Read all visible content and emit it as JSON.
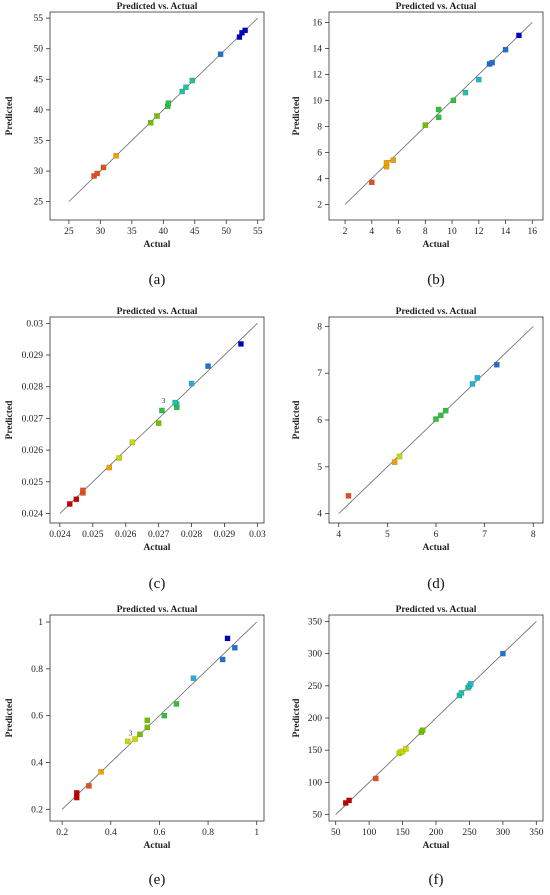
{
  "chart_data": [
    {
      "type": "scatter",
      "panel_label": "(a)",
      "title": "Predicted vs. Actual",
      "xlabel": "Actual",
      "ylabel": "Predicted",
      "xlim": [
        22,
        56
      ],
      "ylim": [
        22,
        56
      ],
      "xticks": [
        "25",
        "30",
        "35",
        "40",
        "45",
        "50",
        "55"
      ],
      "yticks": [
        "25",
        "30",
        "35",
        "40",
        "45",
        "50",
        "55"
      ],
      "tick_values": [
        25,
        30,
        35,
        40,
        45,
        50,
        55
      ],
      "diag": [
        25,
        55
      ],
      "points": [
        [
          29,
          29.2
        ],
        [
          29.5,
          29.6
        ],
        [
          30.5,
          30.6
        ],
        [
          32.5,
          32.5
        ],
        [
          38,
          37.9
        ],
        [
          39,
          39
        ],
        [
          40.7,
          40.6
        ],
        [
          40.8,
          41.1
        ],
        [
          43,
          43
        ],
        [
          43.6,
          43.7
        ],
        [
          44.6,
          44.8
        ],
        [
          49.1,
          49.1
        ],
        [
          52.1,
          51.9
        ],
        [
          52.5,
          52.6
        ],
        [
          53,
          53
        ]
      ],
      "annotations": []
    },
    {
      "type": "scatter",
      "panel_label": "(b)",
      "title": "Predicted vs. Actual",
      "xlabel": "Actual",
      "ylabel": "Predicted",
      "xlim": [
        0.8,
        16.8
      ],
      "ylim": [
        0.8,
        16.8
      ],
      "xticks": [
        "2",
        "4",
        "6",
        "8",
        "10",
        "12",
        "14",
        "16"
      ],
      "yticks": [
        "2",
        "4",
        "6",
        "8",
        "10",
        "12",
        "14",
        "16"
      ],
      "tick_values": [
        2,
        4,
        6,
        8,
        10,
        12,
        14,
        16
      ],
      "diag": [
        2,
        16
      ],
      "points": [
        [
          4,
          3.7
        ],
        [
          5.1,
          4.9
        ],
        [
          5.1,
          5.2
        ],
        [
          5.6,
          5.4
        ],
        [
          8,
          8.1
        ],
        [
          9,
          8.7
        ],
        [
          9,
          9.3
        ],
        [
          10.1,
          10
        ],
        [
          11,
          10.6
        ],
        [
          12,
          11.6
        ],
        [
          12.8,
          12.8
        ],
        [
          13,
          12.9
        ],
        [
          14,
          13.9
        ],
        [
          15,
          15
        ]
      ],
      "annotations": []
    },
    {
      "type": "scatter",
      "panel_label": "(c)",
      "title": "Predicted vs. Actual",
      "xlabel": "Actual",
      "ylabel": "Predicted",
      "xlim": [
        0.0237,
        0.0302
      ],
      "ylim": [
        0.0237,
        0.0302
      ],
      "xticks": [
        "0.024",
        "0.025",
        "0.026",
        "0.027",
        "0.028",
        "0.029",
        "0.03"
      ],
      "yticks": [
        "0.024",
        "0.025",
        "0.026",
        "0.027",
        "0.028",
        "0.029",
        "0.03"
      ],
      "tick_values": [
        0.024,
        0.025,
        0.026,
        0.027,
        0.028,
        0.029,
        0.03
      ],
      "diag": [
        0.024,
        0.03
      ],
      "points": [
        [
          0.0243,
          0.0243
        ],
        [
          0.0245,
          0.02445
        ],
        [
          0.0247,
          0.02465
        ],
        [
          0.0247,
          0.02473
        ],
        [
          0.0255,
          0.02545
        ],
        [
          0.0258,
          0.02575
        ],
        [
          0.0262,
          0.02625
        ],
        [
          0.027,
          0.02685
        ],
        [
          0.0271,
          0.02725
        ],
        [
          0.02755,
          0.02735
        ],
        [
          0.02755,
          0.02745
        ],
        [
          0.0275,
          0.0275
        ],
        [
          0.028,
          0.0281
        ],
        [
          0.0285,
          0.02865
        ],
        [
          0.0295,
          0.02935
        ]
      ],
      "annotations": [
        {
          "text": "3",
          "x": 0.02725,
          "y": 0.02748
        }
      ]
    },
    {
      "type": "scatter",
      "panel_label": "(d)",
      "title": "Predicted vs. Actual",
      "xlabel": "Actual",
      "ylabel": "Predicted",
      "xlim": [
        3.8,
        8.2
      ],
      "ylim": [
        3.8,
        8.2
      ],
      "xticks": [
        "4",
        "5",
        "6",
        "7",
        "8"
      ],
      "yticks": [
        "4",
        "5",
        "6",
        "7",
        "8"
      ],
      "tick_values": [
        4,
        5,
        6,
        7,
        8
      ],
      "diag": [
        4,
        8
      ],
      "points": [
        [
          4.2,
          4.38
        ],
        [
          5.15,
          5.1
        ],
        [
          5.25,
          5.22
        ],
        [
          6,
          6.02
        ],
        [
          6.1,
          6.1
        ],
        [
          6.2,
          6.2
        ],
        [
          6.75,
          6.77
        ],
        [
          6.85,
          6.9
        ],
        [
          7.25,
          7.18
        ]
      ],
      "annotations": []
    },
    {
      "type": "scatter",
      "panel_label": "(e)",
      "title": "Predicted vs. Actual",
      "xlabel": "Actual",
      "ylabel": "Predicted",
      "xlim": [
        0.15,
        1.03
      ],
      "ylim": [
        0.15,
        1.03
      ],
      "xticks": [
        "0.2",
        "0.4",
        "0.6",
        "0.8",
        "1"
      ],
      "yticks": [
        "0.2",
        "0.4",
        "0.6",
        "0.8",
        "1"
      ],
      "tick_values": [
        0.2,
        0.4,
        0.6,
        0.8,
        1
      ],
      "diag": [
        0.2,
        1
      ],
      "points": [
        [
          0.26,
          0.27
        ],
        [
          0.26,
          0.25
        ],
        [
          0.31,
          0.3
        ],
        [
          0.36,
          0.36
        ],
        [
          0.47,
          0.49
        ],
        [
          0.5,
          0.5
        ],
        [
          0.52,
          0.52
        ],
        [
          0.55,
          0.55
        ],
        [
          0.55,
          0.58
        ],
        [
          0.62,
          0.6
        ],
        [
          0.67,
          0.65
        ],
        [
          0.74,
          0.76
        ],
        [
          0.86,
          0.84
        ],
        [
          0.88,
          0.93
        ],
        [
          0.91,
          0.89
        ]
      ],
      "annotations": [
        {
          "text": "3",
          "x": 0.495,
          "y": 0.515
        }
      ]
    },
    {
      "type": "scatter",
      "panel_label": "(f)",
      "title": "Predicted vs. Actual",
      "xlabel": "Actual",
      "ylabel": "Predicted",
      "xlim": [
        40,
        360
      ],
      "ylim": [
        40,
        360
      ],
      "xticks": [
        "50",
        "100",
        "150",
        "200",
        "250",
        "300",
        "350"
      ],
      "yticks": [
        "50",
        "100",
        "150",
        "200",
        "250",
        "300",
        "350"
      ],
      "tick_values": [
        50,
        100,
        150,
        200,
        250,
        300,
        350
      ],
      "diag": [
        50,
        350
      ],
      "points": [
        [
          65,
          68
        ],
        [
          70,
          72
        ],
        [
          110,
          106
        ],
        [
          145,
          145
        ],
        [
          147,
          147
        ],
        [
          150,
          148
        ],
        [
          155,
          152
        ],
        [
          178,
          178
        ],
        [
          180,
          181
        ],
        [
          235,
          235
        ],
        [
          238,
          239
        ],
        [
          248,
          247
        ],
        [
          250,
          250
        ],
        [
          252,
          253
        ],
        [
          300,
          300
        ]
      ],
      "annotations": []
    }
  ],
  "colors": {
    "gradient": [
      "#c00000",
      "#e05020",
      "#f0a000",
      "#c8d800",
      "#70c000",
      "#30c040",
      "#20c0a0",
      "#20b0d8",
      "#2070d0",
      "#0000c0"
    ],
    "axis": "#333333",
    "diag": "#666666"
  }
}
